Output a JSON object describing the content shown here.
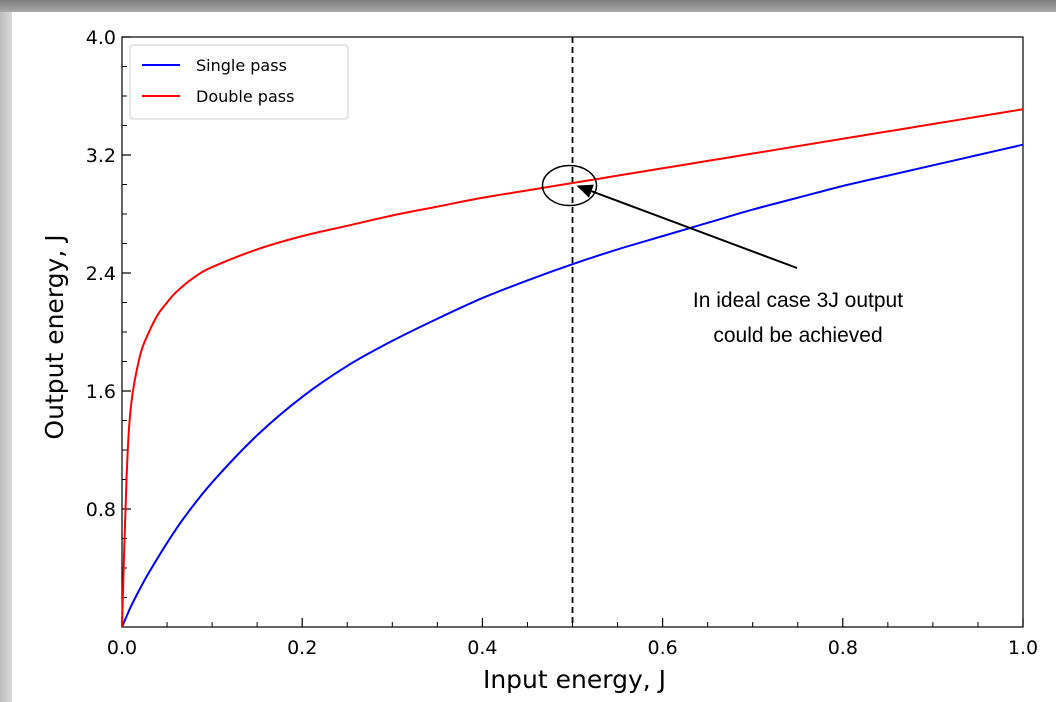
{
  "chart_data": {
    "type": "line",
    "title": "",
    "xlabel": "Input energy, J",
    "ylabel": "Output energy, J",
    "xlim": [
      0.0,
      1.0
    ],
    "ylim": [
      0.0,
      4.0
    ],
    "x_ticks": [
      "0.0",
      "0.2",
      "0.4",
      "0.6",
      "0.8",
      "1.0"
    ],
    "y_ticks": [
      "0.8",
      "1.6",
      "2.4",
      "3.2",
      "4.0"
    ],
    "grid": false,
    "legend_position": "top-left",
    "series": [
      {
        "name": "Single pass",
        "color": "#0000ff",
        "x": [
          0.0,
          0.01,
          0.02,
          0.03,
          0.05,
          0.07,
          0.1,
          0.15,
          0.2,
          0.25,
          0.3,
          0.35,
          0.4,
          0.45,
          0.5,
          0.55,
          0.6,
          0.65,
          0.7,
          0.75,
          0.8,
          0.85,
          0.9,
          0.95,
          1.0
        ],
        "y": [
          0.0,
          0.14,
          0.26,
          0.37,
          0.57,
          0.75,
          0.98,
          1.3,
          1.56,
          1.77,
          1.94,
          2.09,
          2.23,
          2.35,
          2.46,
          2.56,
          2.65,
          2.74,
          2.83,
          2.91,
          2.99,
          3.06,
          3.13,
          3.2,
          3.27
        ]
      },
      {
        "name": "Double pass",
        "color": "#ff0000",
        "x": [
          0.0,
          0.005,
          0.01,
          0.02,
          0.03,
          0.04,
          0.05,
          0.06,
          0.08,
          0.1,
          0.15,
          0.2,
          0.25,
          0.3,
          0.35,
          0.4,
          0.45,
          0.5,
          0.55,
          0.6,
          0.65,
          0.7,
          0.75,
          0.8,
          0.85,
          0.9,
          0.95,
          1.0
        ],
        "y": [
          0.0,
          1.0,
          1.5,
          1.84,
          2.0,
          2.12,
          2.2,
          2.27,
          2.37,
          2.44,
          2.56,
          2.65,
          2.72,
          2.79,
          2.85,
          2.91,
          2.96,
          3.01,
          3.06,
          3.11,
          3.16,
          3.21,
          3.26,
          3.31,
          3.36,
          3.41,
          3.46,
          3.51
        ]
      }
    ],
    "reference_line": {
      "x": 0.5,
      "style": "dashed"
    },
    "annotation": {
      "lines": [
        "In ideal case 3J output",
        "could be achieved"
      ],
      "target_x": 0.5,
      "target_y": 3.02
    }
  }
}
